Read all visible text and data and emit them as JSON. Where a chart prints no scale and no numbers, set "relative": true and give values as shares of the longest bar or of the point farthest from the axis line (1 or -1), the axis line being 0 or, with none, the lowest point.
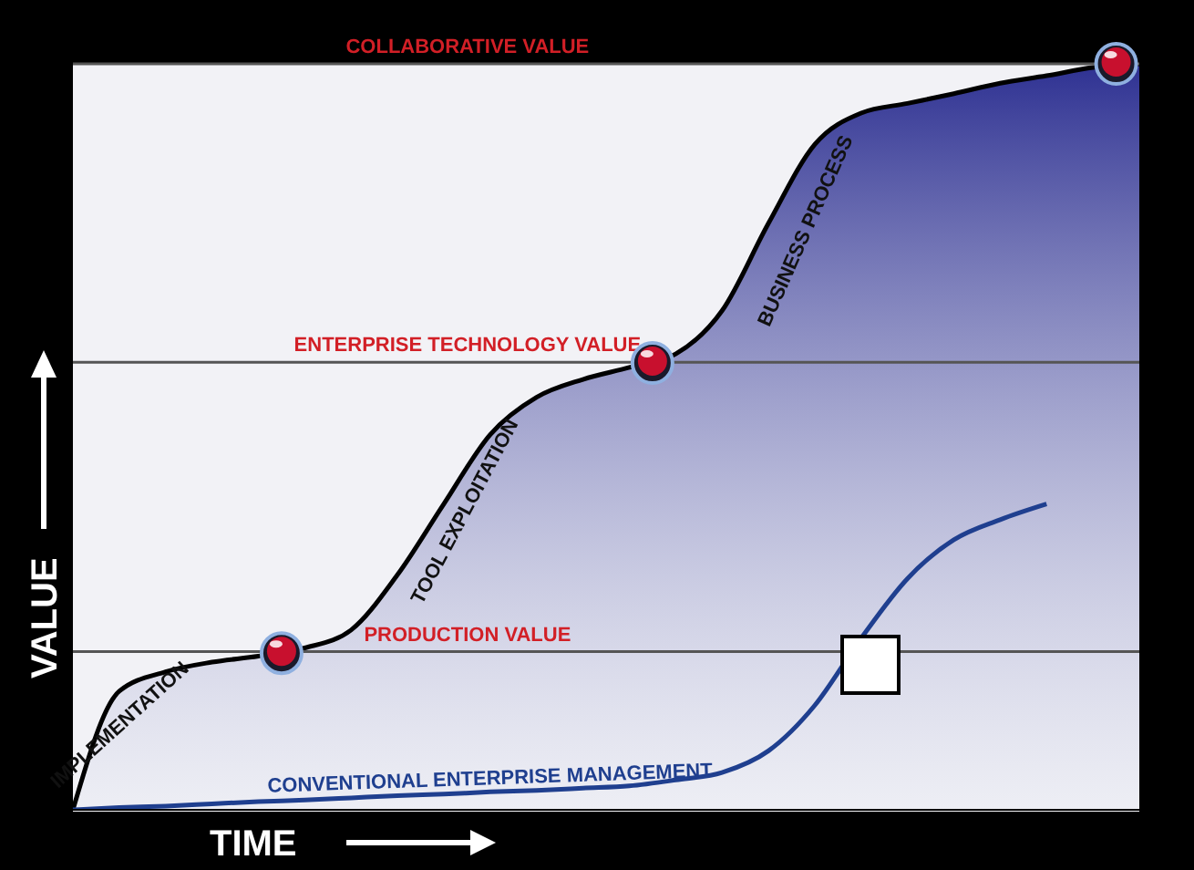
{
  "chart_data": {
    "type": "area",
    "relative": true,
    "xlabel": "TIME",
    "ylabel": "VALUE",
    "categories": [
      null,
      null,
      null,
      null,
      null,
      null,
      null,
      null,
      null,
      null,
      null,
      null,
      null,
      null,
      null,
      null,
      null,
      null,
      null,
      null,
      null,
      null,
      null,
      null
    ],
    "series": [
      {
        "type": "area",
        "color": "#2e3192",
        "values": [
          0,
          0.159,
          0.185,
          0.198,
          0.206,
          0.217,
          0.241,
          0.315,
          0.41,
          0.503,
          0.553,
          0.577,
          0.593,
          0.611,
          0.669,
          0.786,
          0.892,
          0.934,
          0.947,
          0.96,
          0.974,
          0.984,
          0.995,
          1
        ]
      },
      {
        "type": "line",
        "name": "CONVENTIONAL ENTERPRISE MANAGEMENT",
        "color": "#1f3f8f",
        "values": [
          0,
          0.003,
          0.005,
          0.008,
          0.011,
          0.013,
          0.016,
          0.019,
          0.021,
          0.024,
          0.026,
          0.029,
          0.032,
          0.04,
          0.05,
          0.079,
          0.14,
          0.23,
          0.31,
          0.362,
          0.389,
          0.41,
          null,
          null
        ]
      }
    ],
    "ref_lines": [
      {
        "axis": "y",
        "value": 1,
        "label": "COLLABORATIVE VALUE"
      },
      {
        "axis": "y",
        "value": 0.6,
        "label": "ENTERPRISE TECHNOLOGY VALUE"
      },
      {
        "axis": "y",
        "value": 0.212,
        "label": "PRODUCTION VALUE"
      }
    ],
    "annotations": [
      "IMPLEMENTATION",
      "TOOL EXPLOITATION",
      "BUSINESS PROCESS"
    ]
  }
}
